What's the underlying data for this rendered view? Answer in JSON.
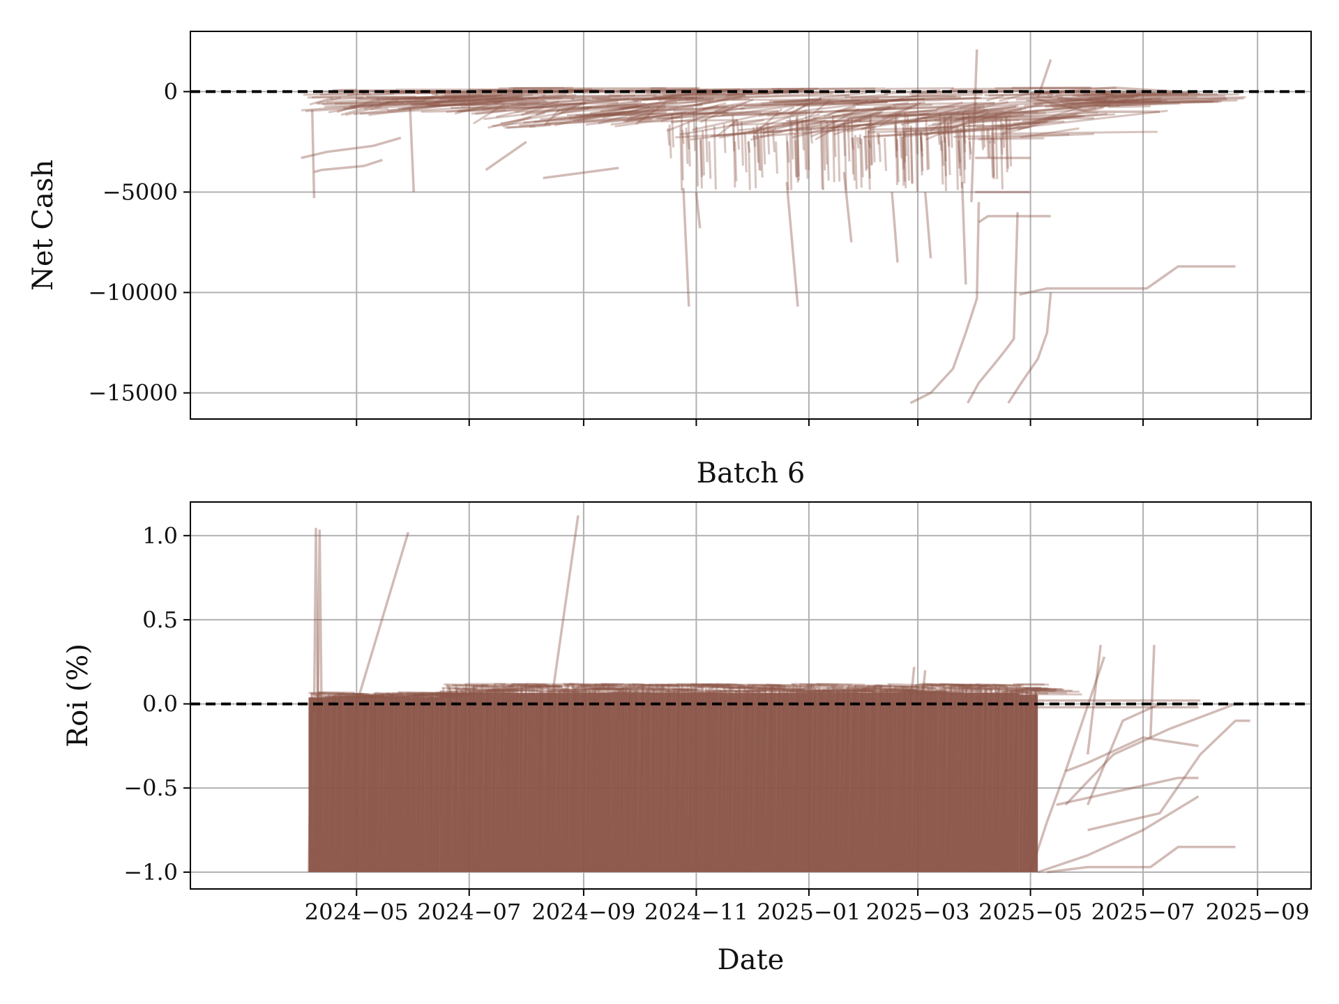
{
  "figure": {
    "title": "Batch 6",
    "line_color": "#8B5549",
    "reference_line_color": "#000000",
    "grid_color": "#B0B0B0"
  },
  "chart_data": [
    {
      "type": "line",
      "panel": "top",
      "title": "",
      "xlabel": "",
      "ylabel": "Net Cash",
      "x_axis": "date",
      "x_range": [
        "2024-02-01",
        "2025-09-30"
      ],
      "ylim": [
        -16300,
        3000
      ],
      "x_ticks": [
        "2024-05-01",
        "2024-07-01",
        "2024-09-01",
        "2024-11-01",
        "2025-01-01",
        "2025-03-01",
        "2025-05-01",
        "2025-07-01",
        "2025-09-01"
      ],
      "x_tick_labels": [],
      "y_ticks": [
        0,
        -5000,
        -10000,
        -15000
      ],
      "y_tick_labels": [
        "0",
        "−5000",
        "−10000",
        "−15000"
      ],
      "grid": true,
      "reference_line": {
        "y": 0,
        "style": "dashed"
      },
      "note": "Several hundred overlapping translucent series; representative subset shown.",
      "series": [
        {
          "x": [
            "2024-04-01",
            "2024-04-15",
            "2024-05-10",
            "2024-05-25"
          ],
          "y": [
            -3300,
            -3000,
            -2700,
            -2300
          ]
        },
        {
          "x": [
            "2024-04-08",
            "2024-04-12",
            "2024-05-05",
            "2024-05-15"
          ],
          "y": [
            -4000,
            -3900,
            -3700,
            -3400
          ]
        },
        {
          "x": [
            "2024-04-07",
            "2024-04-08"
          ],
          "y": [
            -900,
            -5300
          ]
        },
        {
          "x": [
            "2024-05-30",
            "2024-06-01"
          ],
          "y": [
            -800,
            -5000
          ]
        },
        {
          "x": [
            "2024-07-10",
            "2024-08-01"
          ],
          "y": [
            -3900,
            -2500
          ]
        },
        {
          "x": [
            "2024-08-10",
            "2024-09-20"
          ],
          "y": [
            -4300,
            -3800
          ]
        },
        {
          "x": [
            "2024-10-25",
            "2024-10-28"
          ],
          "y": [
            -4800,
            -10700
          ]
        },
        {
          "x": [
            "2024-11-01",
            "2024-11-03"
          ],
          "y": [
            -5000,
            -6800
          ]
        },
        {
          "x": [
            "2024-12-20",
            "2024-12-26"
          ],
          "y": [
            -4500,
            -10700
          ]
        },
        {
          "x": [
            "2025-01-20",
            "2025-01-24"
          ],
          "y": [
            -4000,
            -7500
          ]
        },
        {
          "x": [
            "2025-02-15",
            "2025-02-18"
          ],
          "y": [
            -5000,
            -8500
          ]
        },
        {
          "x": [
            "2025-03-05",
            "2025-03-08"
          ],
          "y": [
            -5000,
            -8300
          ]
        },
        {
          "x": [
            "2025-03-25",
            "2025-03-27"
          ],
          "y": [
            -4500,
            -9600
          ]
        },
        {
          "x": [
            "2025-03-30",
            "2025-04-02"
          ],
          "y": [
            -5500,
            2100
          ]
        },
        {
          "x": [
            "2025-02-25",
            "2025-03-08",
            "2025-03-20",
            "2025-03-27",
            "2025-04-02",
            "2025-04-03"
          ],
          "y": [
            -15500,
            -15000,
            -13800,
            -12000,
            -10300,
            -5500
          ]
        },
        {
          "x": [
            "2025-03-28",
            "2025-04-03",
            "2025-04-12",
            "2025-04-18",
            "2025-04-22",
            "2025-04-24"
          ],
          "y": [
            -15500,
            -14500,
            -13500,
            -12800,
            -12300,
            -6000
          ]
        },
        {
          "x": [
            "2025-04-19",
            "2025-04-26",
            "2025-05-05",
            "2025-05-10",
            "2025-05-12"
          ],
          "y": [
            -15500,
            -14500,
            -13300,
            -12000,
            -10000
          ]
        },
        {
          "x": [
            "2025-04-03",
            "2025-04-08",
            "2025-05-12"
          ],
          "y": [
            -6500,
            -6200,
            -6200
          ]
        },
        {
          "x": [
            "2025-04-01",
            "2025-05-01"
          ],
          "y": [
            -5000,
            -5000
          ]
        },
        {
          "x": [
            "2025-04-25",
            "2025-05-10",
            "2025-06-01",
            "2025-07-03",
            "2025-07-20",
            "2025-08-20"
          ],
          "y": [
            -10100,
            -9800,
            -9800,
            -9800,
            -8700,
            -8700
          ]
        },
        {
          "x": [
            "2025-04-01",
            "2025-05-01"
          ],
          "y": [
            -3300,
            -3300
          ]
        },
        {
          "x": [
            "2025-05-05",
            "2025-05-12"
          ],
          "y": [
            -300,
            1600
          ]
        },
        {
          "x": [
            "2025-05-01",
            "2025-06-01",
            "2025-07-10"
          ],
          "y": [
            -300,
            -1000,
            -1000
          ]
        },
        {
          "x": [
            "2025-05-01",
            "2025-06-10",
            "2025-08-08"
          ],
          "y": [
            -200,
            -500,
            -500
          ]
        },
        {
          "x": [
            "2025-05-01",
            "2025-06-15",
            "2025-07-20"
          ],
          "y": [
            -100,
            200,
            0
          ]
        }
      ],
      "bands": [
        {
          "x_start": "2024-04-01",
          "x_end": "2024-06-30",
          "top": 100,
          "bottom": -1200
        },
        {
          "x_start": "2024-07-01",
          "x_end": "2024-10-15",
          "top": 200,
          "bottom": -1800
        },
        {
          "x_start": "2024-10-15",
          "x_end": "2025-05-01",
          "top": 200,
          "bottom": -2400
        },
        {
          "x_start": "2025-05-01",
          "x_end": "2025-06-20",
          "top": 100,
          "bottom": -800
        }
      ]
    },
    {
      "type": "line",
      "panel": "bottom",
      "title": "Batch 6",
      "xlabel": "Date",
      "ylabel": "Roi (%)",
      "x_axis": "date",
      "x_range": [
        "2024-02-01",
        "2025-09-30"
      ],
      "ylim": [
        -1.1,
        1.2
      ],
      "x_ticks": [
        "2024-05-01",
        "2024-07-01",
        "2024-09-01",
        "2024-11-01",
        "2025-01-01",
        "2025-03-01",
        "2025-05-01",
        "2025-07-01",
        "2025-09-01"
      ],
      "x_tick_labels": [
        "2024−05",
        "2024−07",
        "2024−09",
        "2024−11",
        "2025−01",
        "2025−03",
        "2025−05",
        "2025−07",
        "2025−09"
      ],
      "y_ticks": [
        1.0,
        0.5,
        0.0,
        -0.5,
        -1.0
      ],
      "y_tick_labels": [
        "1.0",
        "0.5",
        "0.0",
        "−0.5",
        "−1.0"
      ],
      "grid": true,
      "reference_line": {
        "y": 0.0,
        "style": "dashed"
      },
      "note": "Several hundred overlapping translucent series; representative subset shown.",
      "series": [
        {
          "x": [
            "2024-04-08",
            "2024-04-09",
            "2024-04-10"
          ],
          "y": [
            -0.05,
            1.04,
            0.0
          ]
        },
        {
          "x": [
            "2024-04-10",
            "2024-04-11",
            "2024-04-12"
          ],
          "y": [
            -0.05,
            1.03,
            0.0
          ]
        },
        {
          "x": [
            "2024-05-01",
            "2024-05-29"
          ],
          "y": [
            0.0,
            1.02
          ]
        },
        {
          "x": [
            "2024-08-15",
            "2024-08-29"
          ],
          "y": [
            0.05,
            1.12
          ]
        },
        {
          "x": [
            "2025-05-01",
            "2025-05-10",
            "2025-05-20",
            "2025-06-01",
            "2025-07-01",
            "2025-07-31"
          ],
          "y": [
            -1.0,
            -0.7,
            -0.4,
            -0.35,
            -0.2,
            -0.25
          ]
        },
        {
          "x": [
            "2025-05-05",
            "2025-06-01",
            "2025-07-01",
            "2025-07-31"
          ],
          "y": [
            -1.0,
            -0.9,
            -0.75,
            -0.55
          ]
        },
        {
          "x": [
            "2025-05-10",
            "2025-06-01",
            "2025-07-05",
            "2025-07-20",
            "2025-08-20"
          ],
          "y": [
            -1.0,
            -0.97,
            -0.97,
            -0.85,
            -0.85
          ]
        },
        {
          "x": [
            "2025-06-01",
            "2025-07-10",
            "2025-08-01",
            "2025-08-20",
            "2025-08-28"
          ],
          "y": [
            -0.75,
            -0.65,
            -0.3,
            -0.1,
            -0.1
          ]
        },
        {
          "x": [
            "2025-05-20",
            "2025-06-15",
            "2025-07-15",
            "2025-08-20"
          ],
          "y": [
            -0.6,
            -0.3,
            -0.15,
            0.0
          ]
        },
        {
          "x": [
            "2025-05-15",
            "2025-07-20",
            "2025-07-31"
          ],
          "y": [
            -0.6,
            -0.44,
            -0.44
          ]
        },
        {
          "x": [
            "2025-06-01",
            "2025-06-20",
            "2025-07-10"
          ],
          "y": [
            -0.6,
            -0.1,
            0.0
          ]
        },
        {
          "x": [
            "2025-05-20",
            "2025-06-10"
          ],
          "y": [
            -0.4,
            0.28
          ]
        },
        {
          "x": [
            "2025-06-01",
            "2025-06-08"
          ],
          "y": [
            -0.3,
            0.35
          ]
        },
        {
          "x": [
            "2025-05-01",
            "2025-07-31"
          ],
          "y": [
            -0.02,
            -0.02
          ]
        },
        {
          "x": [
            "2025-05-01",
            "2025-08-01"
          ],
          "y": [
            0.02,
            0.02
          ]
        },
        {
          "x": [
            "2025-07-05",
            "2025-07-07"
          ],
          "y": [
            -0.2,
            0.35
          ]
        },
        {
          "x": [
            "2025-02-25",
            "2025-02-27"
          ],
          "y": [
            0.0,
            0.22
          ]
        },
        {
          "x": [
            "2025-03-03",
            "2025-03-05"
          ],
          "y": [
            0.0,
            0.2
          ]
        }
      ],
      "bands": [
        {
          "x_start": "2024-04-05",
          "x_end": "2024-06-15",
          "top": 0.07,
          "bottom": -1.0
        },
        {
          "x_start": "2024-06-15",
          "x_end": "2025-04-25",
          "top": 0.12,
          "bottom": -1.0
        },
        {
          "x_start": "2025-04-25",
          "x_end": "2025-05-05",
          "top": 0.1,
          "bottom": -1.0
        }
      ]
    }
  ]
}
